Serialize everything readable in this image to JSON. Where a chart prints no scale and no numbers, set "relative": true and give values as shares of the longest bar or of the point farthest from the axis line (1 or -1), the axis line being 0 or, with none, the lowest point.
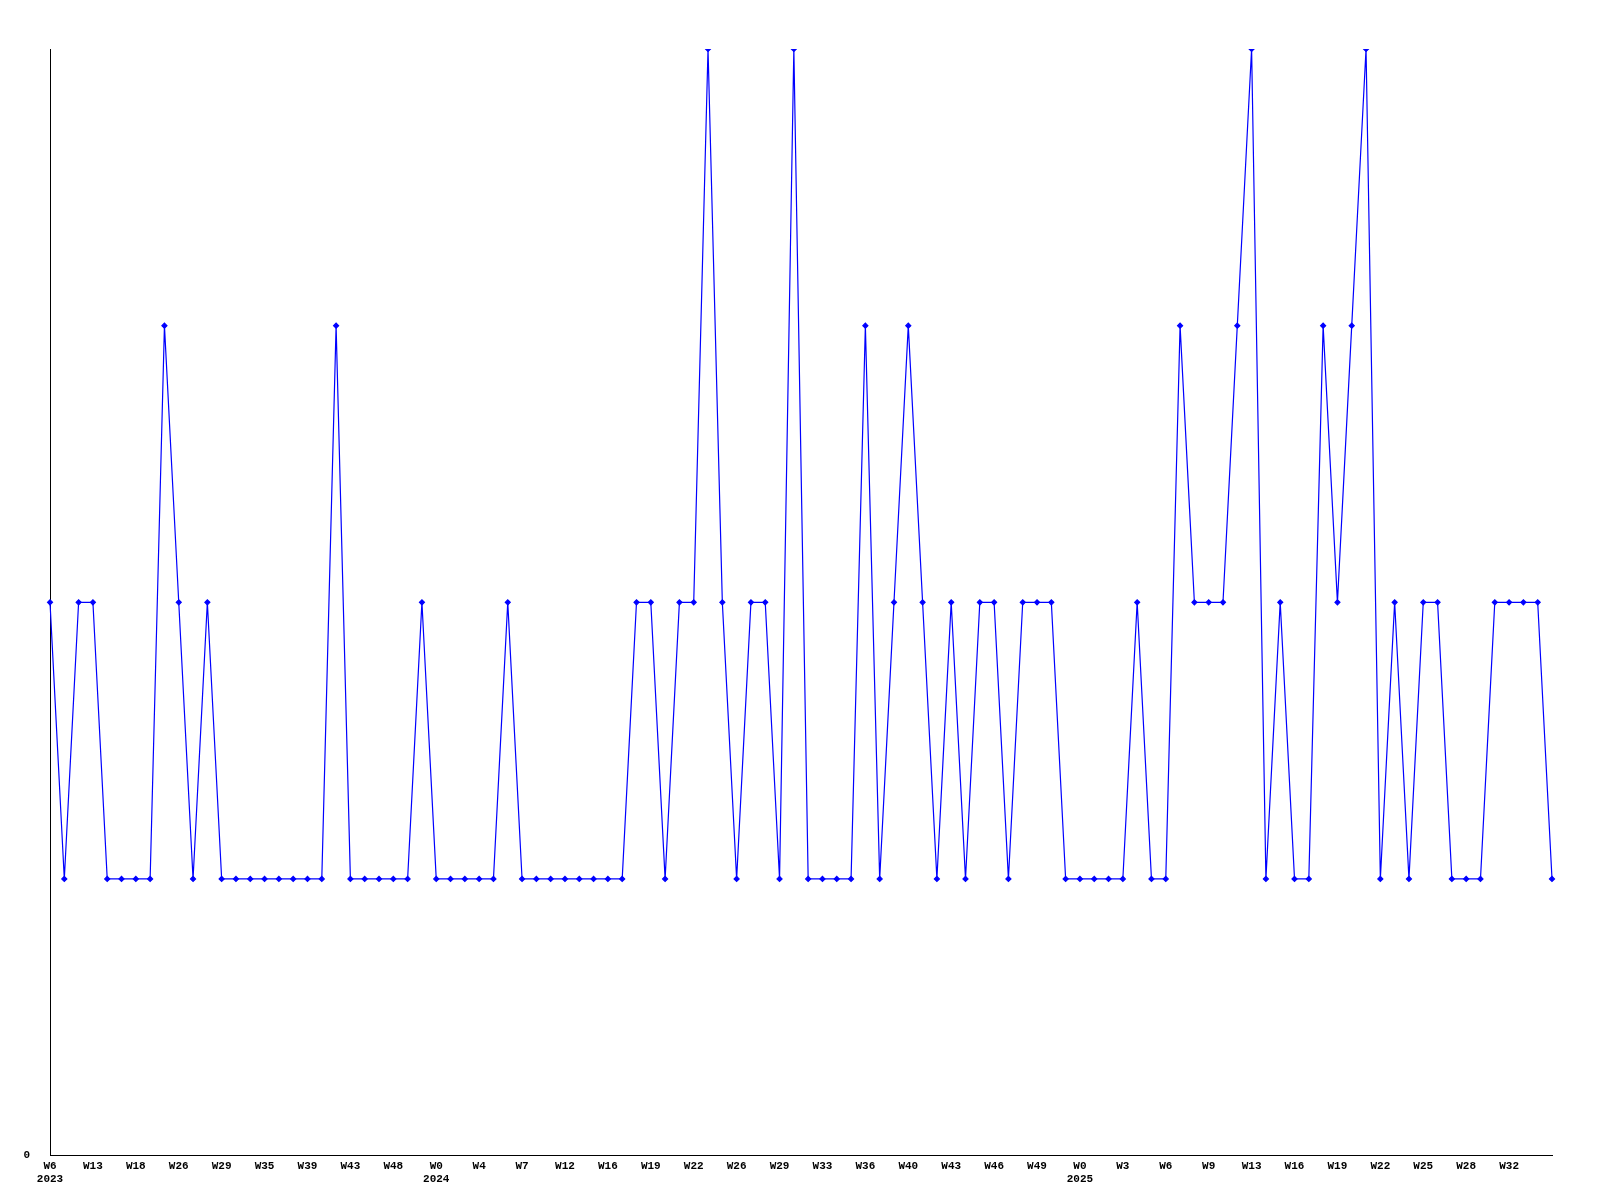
{
  "chart_data": {
    "type": "line",
    "categories": [
      "W6\n2023",
      null,
      null,
      "W13",
      null,
      null,
      "W18",
      null,
      null,
      "W26",
      null,
      null,
      "W29",
      null,
      null,
      "W35",
      null,
      null,
      "W39",
      null,
      null,
      "W43",
      null,
      null,
      "W48",
      null,
      null,
      "W0\n2024",
      null,
      null,
      "W4",
      null,
      null,
      "W7",
      null,
      null,
      "W12",
      null,
      null,
      "W16",
      null,
      null,
      "W19",
      null,
      null,
      "W22",
      null,
      null,
      "W26",
      null,
      null,
      "W29",
      null,
      null,
      "W33",
      null,
      null,
      "W36",
      null,
      null,
      "W40",
      null,
      null,
      "W43",
      null,
      null,
      "W46",
      null,
      null,
      "W49",
      null,
      null,
      "W0\n2025",
      null,
      null,
      "W3",
      null,
      null,
      "W6",
      null,
      null,
      "W9",
      null,
      null,
      "W13",
      null,
      null,
      "W16",
      null,
      null,
      "W19",
      null,
      null,
      "W22",
      null,
      null,
      "W25",
      null,
      null,
      "W28",
      null,
      null,
      "W32",
      null,
      null,
      null
    ],
    "relative": true,
    "color": "#0000ff",
    "values": [
      0.5,
      0.25,
      0.5,
      0.5,
      0.25,
      0.25,
      0.25,
      0.25,
      0.75,
      0.5,
      0.25,
      0.5,
      0.25,
      0.25,
      0.25,
      0.25,
      0.25,
      0.25,
      0.25,
      0.25,
      0.75,
      0.25,
      0.25,
      0.25,
      0.25,
      0.25,
      0.5,
      0.25,
      0.25,
      0.25,
      0.25,
      0.25,
      0.5,
      0.25,
      0.25,
      0.25,
      0.25,
      0.25,
      0.25,
      0.25,
      0.25,
      0.5,
      0.5,
      0.25,
      0.5,
      0.5,
      1,
      0.5,
      0.25,
      0.5,
      0.5,
      0.25,
      1,
      0.25,
      0.25,
      0.25,
      0.25,
      0.75,
      0.25,
      0.5,
      0.75,
      0.5,
      0.25,
      0.5,
      0.25,
      0.5,
      0.5,
      0.25,
      0.5,
      0.5,
      0.5,
      0.25,
      0.25,
      0.25,
      0.25,
      0.25,
      0.5,
      0.25,
      0.25,
      0.75,
      0.5,
      0.5,
      0.5,
      0.75,
      1,
      0.25,
      0.5,
      0.25,
      0.25,
      0.75,
      0.5,
      0.75,
      1,
      0.25,
      0.5,
      0.25,
      0.5,
      0.5,
      0.25,
      0.25,
      0.25,
      0.5,
      0.5,
      0.5,
      0.5,
      0.25
    ],
    "annotations": [
      "0"
    ],
    "marker": "diamond",
    "grid": false,
    "legend": false
  }
}
